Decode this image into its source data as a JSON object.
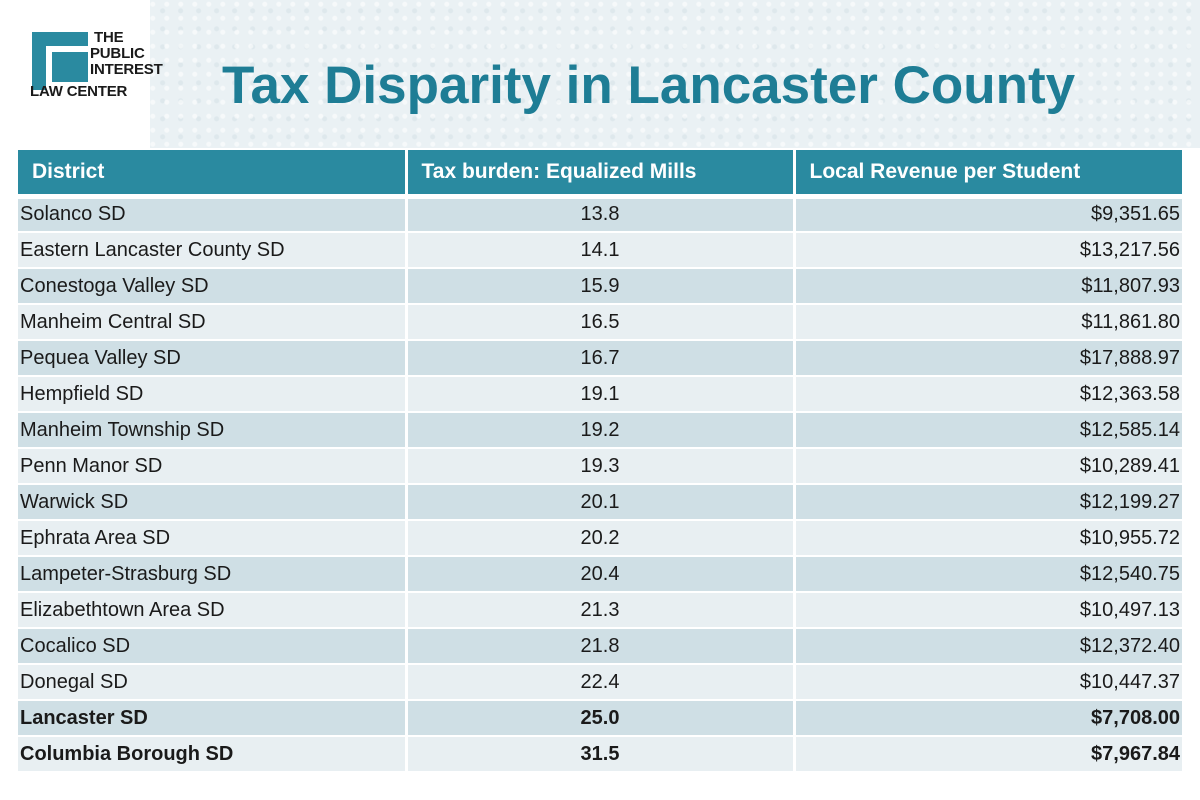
{
  "logo": {
    "line1": "THE",
    "line2": "PUBLIC",
    "line3": "INTEREST",
    "line4": "LAW CENTER"
  },
  "title": "Tax Disparity in Lancaster County",
  "colors": {
    "accent": "#2a8aa0",
    "title": "#1e7d95",
    "row_odd": "#cfdfe5",
    "row_even": "#e8eff2"
  },
  "table": {
    "headers": [
      "District",
      "Tax burden: Equalized Mills",
      "Local Revenue per Student"
    ],
    "rows": [
      {
        "district": "Solanco SD",
        "mills": "13.8",
        "revenue": "$9,351.65",
        "bold": false
      },
      {
        "district": "Eastern Lancaster County SD",
        "mills": "14.1",
        "revenue": "$13,217.56",
        "bold": false
      },
      {
        "district": "Conestoga Valley SD",
        "mills": "15.9",
        "revenue": "$11,807.93",
        "bold": false
      },
      {
        "district": "Manheim Central SD",
        "mills": "16.5",
        "revenue": "$11,861.80",
        "bold": false
      },
      {
        "district": "Pequea Valley SD",
        "mills": "16.7",
        "revenue": "$17,888.97",
        "bold": false
      },
      {
        "district": "Hempfield  SD",
        "mills": "19.1",
        "revenue": "$12,363.58",
        "bold": false
      },
      {
        "district": "Manheim Township SD",
        "mills": "19.2",
        "revenue": "$12,585.14",
        "bold": false
      },
      {
        "district": "Penn Manor SD",
        "mills": "19.3",
        "revenue": "$10,289.41",
        "bold": false
      },
      {
        "district": "Warwick SD",
        "mills": "20.1",
        "revenue": "$12,199.27",
        "bold": false
      },
      {
        "district": "Ephrata Area SD",
        "mills": "20.2",
        "revenue": "$10,955.72",
        "bold": false
      },
      {
        "district": "Lampeter-Strasburg SD",
        "mills": "20.4",
        "revenue": "$12,540.75",
        "bold": false
      },
      {
        "district": "Elizabethtown Area SD",
        "mills": "21.3",
        "revenue": "$10,497.13",
        "bold": false
      },
      {
        "district": "Cocalico SD",
        "mills": "21.8",
        "revenue": "$12,372.40",
        "bold": false
      },
      {
        "district": "Donegal SD",
        "mills": "22.4",
        "revenue": "$10,447.37",
        "bold": false
      },
      {
        "district": "Lancaster SD",
        "mills": "25.0",
        "revenue": "$7,708.00",
        "bold": true
      },
      {
        "district": "Columbia Borough SD",
        "mills": "31.5",
        "revenue": "$7,967.84",
        "bold": true
      }
    ]
  }
}
